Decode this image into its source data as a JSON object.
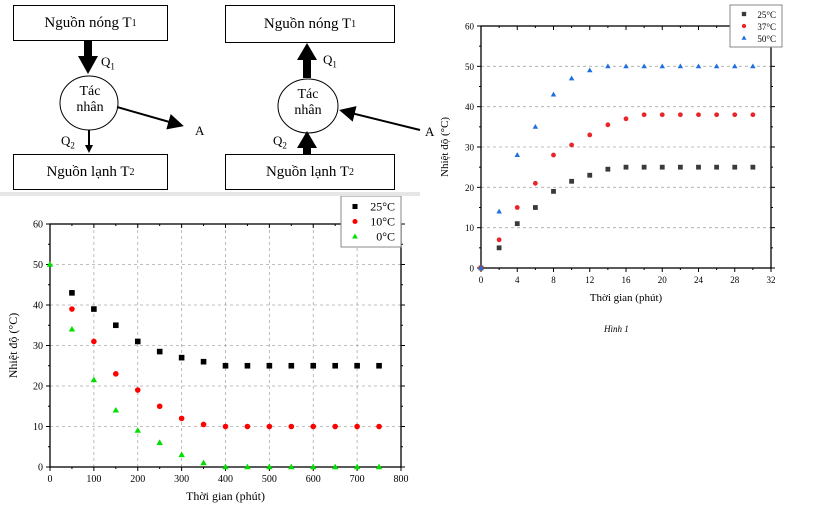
{
  "diagram_left": {
    "hot_source": "Nguồn nóng T",
    "hot_sub": "1",
    "cold_source": "Nguồn lạnh T",
    "cold_sub": "2",
    "agent_line1": "Tác",
    "agent_line2": "nhân",
    "q1": "Q",
    "q1_sub": "1",
    "q2": "Q",
    "q2_sub": "2",
    "work": "A"
  },
  "diagram_right": {
    "hot_source": "Nguồn nóng T",
    "hot_sub": "1",
    "cold_source": "Nguồn lạnh T",
    "cold_sub": "2",
    "agent_line1": "Tác",
    "agent_line2": "nhân",
    "q1": "Q",
    "q1_sub": "1",
    "q2": "Q",
    "q2_sub": "2",
    "work": "A"
  },
  "caption": "Hình 1",
  "chart_data": [
    {
      "type": "scatter",
      "title": "",
      "xlabel": "Thời gian (phút)",
      "ylabel": "Nhiệt độ (°C)",
      "xlim": [
        0,
        32
      ],
      "ylim": [
        0,
        60
      ],
      "xticks": [
        0,
        4,
        8,
        12,
        16,
        20,
        24,
        28,
        32
      ],
      "yticks": [
        0,
        10,
        20,
        30,
        40,
        50,
        60
      ],
      "grid": "horizontal-dashed",
      "legend_position": "top-right",
      "series": [
        {
          "name": "25°C",
          "marker": "square",
          "color": "#3a3a3a",
          "x": [
            0,
            2,
            4,
            6,
            8,
            10,
            12,
            14,
            16,
            18,
            20,
            22,
            24,
            26,
            28,
            30
          ],
          "y": [
            0,
            5,
            11,
            15,
            19,
            21.5,
            23,
            24.5,
            25,
            25,
            25,
            25,
            25,
            25,
            25,
            25
          ]
        },
        {
          "name": "37°C",
          "marker": "circle",
          "color": "#e8262a",
          "x": [
            0,
            2,
            4,
            6,
            8,
            10,
            12,
            14,
            16,
            18,
            20,
            22,
            24,
            26,
            28,
            30
          ],
          "y": [
            0,
            7,
            15,
            21,
            28,
            30.5,
            33,
            35.5,
            37,
            38,
            38,
            38,
            38,
            38,
            38,
            38
          ]
        },
        {
          "name": "50°C",
          "marker": "triangle",
          "color": "#1f6fe0",
          "x": [
            0,
            2,
            4,
            6,
            8,
            10,
            12,
            14,
            16,
            18,
            20,
            22,
            24,
            26,
            28,
            30
          ],
          "y": [
            0,
            14,
            28,
            35,
            43,
            47,
            49,
            50,
            50,
            50,
            50,
            50,
            50,
            50,
            50,
            50
          ]
        }
      ]
    },
    {
      "type": "scatter",
      "title": "",
      "xlabel": "Thời gian (phút)",
      "ylabel": "Nhiệt độ (°C)",
      "xlim": [
        0,
        800
      ],
      "ylim": [
        0,
        60
      ],
      "xticks": [
        0,
        100,
        200,
        300,
        400,
        500,
        600,
        700,
        800
      ],
      "yticks": [
        0,
        10,
        20,
        30,
        40,
        50,
        60
      ],
      "grid": "both-dashed",
      "legend_position": "top-right",
      "series": [
        {
          "name": "25°C",
          "marker": "square",
          "color": "#000000",
          "x": [
            50,
            100,
            150,
            200,
            250,
            300,
            350,
            400,
            450,
            500,
            550,
            600,
            650,
            700,
            750
          ],
          "y": [
            43,
            39,
            35,
            31,
            28.5,
            27,
            26,
            25,
            25,
            25,
            25,
            25,
            25,
            25,
            25
          ]
        },
        {
          "name": "10°C",
          "marker": "circle",
          "color": "#ff0000",
          "x": [
            50,
            100,
            150,
            200,
            250,
            300,
            350,
            400,
            450,
            500,
            550,
            600,
            650,
            700,
            750
          ],
          "y": [
            39,
            31,
            23,
            19,
            15,
            12,
            10.5,
            10,
            10,
            10,
            10,
            10,
            10,
            10,
            10
          ]
        },
        {
          "name": "0°C",
          "marker": "triangle",
          "color": "#00e000",
          "x": [
            0,
            50,
            100,
            150,
            200,
            250,
            300,
            350,
            400,
            450,
            500,
            550,
            600,
            650,
            700,
            750
          ],
          "y": [
            50,
            34,
            21.5,
            14,
            9,
            6,
            3,
            1,
            0,
            0,
            0,
            0,
            0,
            0,
            0,
            0
          ]
        }
      ]
    }
  ]
}
